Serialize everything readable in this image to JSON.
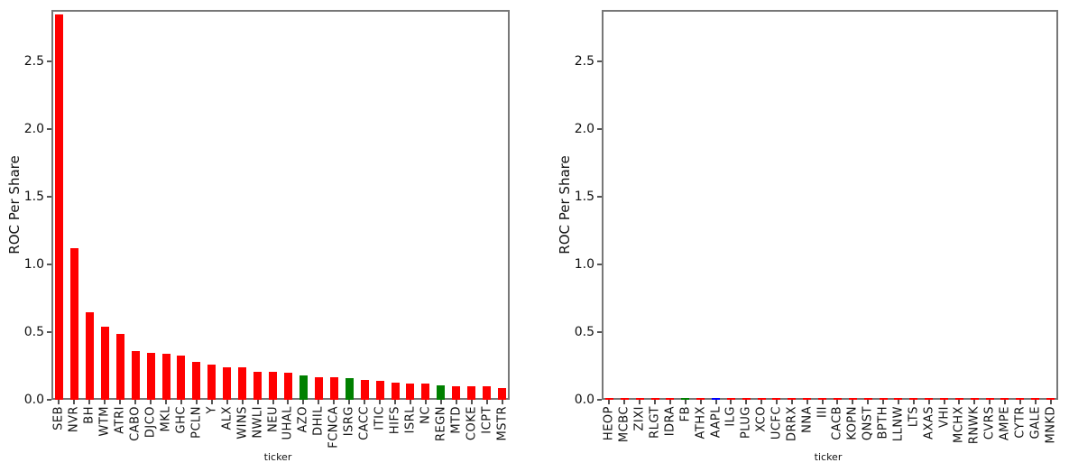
{
  "chart_data": [
    {
      "type": "bar",
      "title": "",
      "xlabel": "ticker",
      "ylabel": "ROC Per Share",
      "ylim": [
        0,
        2.88
      ],
      "yticks": [
        0,
        0.5,
        1.0,
        1.5,
        2.0,
        2.5
      ],
      "yticklabels": [
        "0.0",
        "0.5",
        "1.0",
        "1.5",
        "2.0",
        "2.5"
      ],
      "grid": false,
      "legend": null,
      "categories": [
        "SEB",
        "NVR",
        "BH",
        "WTM",
        "ATRI",
        "CABO",
        "DJCO",
        "MKL",
        "GHC",
        "PCLN",
        "Y",
        "ALX",
        "WINS",
        "NWLI",
        "NEU",
        "UHAL",
        "AZO",
        "DHIL",
        "FCNCA",
        "ISRG",
        "CACC",
        "ITIC",
        "HIFS",
        "ISRL",
        "NC",
        "REGN",
        "MTD",
        "COKE",
        "ICPT",
        "MSTR"
      ],
      "values": [
        2.85,
        1.12,
        0.65,
        0.54,
        0.49,
        0.36,
        0.35,
        0.34,
        0.33,
        0.28,
        0.26,
        0.24,
        0.24,
        0.21,
        0.21,
        0.2,
        0.18,
        0.17,
        0.17,
        0.16,
        0.15,
        0.14,
        0.13,
        0.12,
        0.12,
        0.11,
        0.1,
        0.1,
        0.1,
        0.09
      ],
      "bar_colors": [
        "red",
        "red",
        "red",
        "red",
        "red",
        "red",
        "red",
        "red",
        "red",
        "red",
        "red",
        "red",
        "red",
        "red",
        "red",
        "red",
        "green",
        "red",
        "red",
        "green",
        "red",
        "red",
        "red",
        "red",
        "red",
        "green",
        "red",
        "red",
        "red",
        "red"
      ],
      "palette": {
        "red": "#ff0000",
        "green": "#008000",
        "blue": "#0000ff"
      }
    },
    {
      "type": "bar",
      "title": "",
      "xlabel": "ticker",
      "ylabel": "ROC Per Share",
      "ylim": [
        0,
        2.88
      ],
      "yticks": [
        0,
        0.5,
        1.0,
        1.5,
        2.0,
        2.5
      ],
      "yticklabels": [
        "0.0",
        "0.5",
        "1.0",
        "1.5",
        "2.0",
        "2.5"
      ],
      "grid": false,
      "legend": null,
      "categories": [
        "HEOP",
        "MCBC",
        "ZIXI",
        "RLGT",
        "IDRA",
        "FB",
        "ATHX",
        "AAPL",
        "ILG",
        "PLUG",
        "XCO",
        "UCFC",
        "DRRX",
        "NNA",
        "III",
        "CACB",
        "KOPN",
        "QNST",
        "BPTH",
        "LLNW",
        "LTS",
        "AXAS",
        "VHI",
        "MCHX",
        "RNWK",
        "CVRS",
        "AMPE",
        "CYTR",
        "GALE",
        "MNKD"
      ],
      "values": [
        0.01,
        0.01,
        0.01,
        0.01,
        0.01,
        0.01,
        0.01,
        0.01,
        0.01,
        0.01,
        0.01,
        0.01,
        0.01,
        0.01,
        0.01,
        0.01,
        0.01,
        0.01,
        0.01,
        0.01,
        0.01,
        0.01,
        0.01,
        0.01,
        0.01,
        0.01,
        0.01,
        0.01,
        0.01,
        0.01
      ],
      "bar_colors": [
        "red",
        "red",
        "red",
        "red",
        "red",
        "green",
        "red",
        "blue",
        "red",
        "red",
        "red",
        "red",
        "red",
        "red",
        "red",
        "red",
        "red",
        "red",
        "red",
        "red",
        "red",
        "red",
        "red",
        "red",
        "red",
        "red",
        "red",
        "red",
        "red",
        "red"
      ],
      "palette": {
        "red": "#ff0000",
        "green": "#008000",
        "blue": "#0000ff"
      }
    }
  ]
}
